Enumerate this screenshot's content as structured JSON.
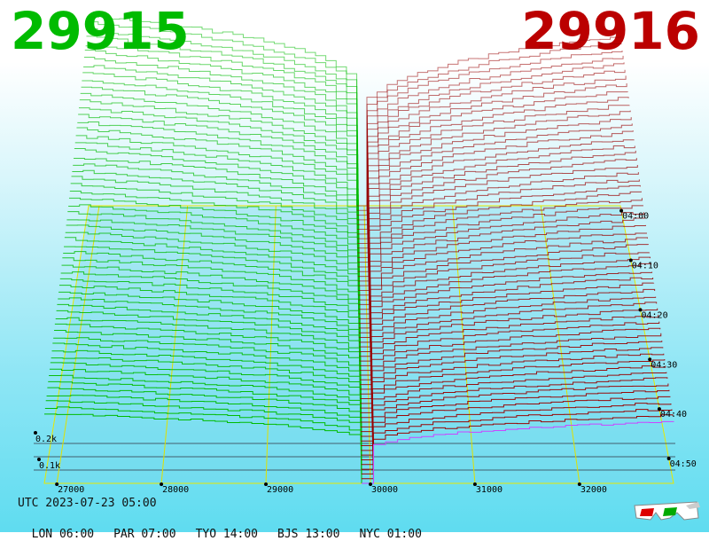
{
  "header": {
    "bid_price": "29915",
    "ask_price": "29916",
    "bid_color": "#00bb00",
    "ask_color": "#bb0000"
  },
  "footer": {
    "utc": "UTC 2023-07-23 05:00",
    "cities": [
      "LON 06:00",
      "PAR 07:00",
      "TYO 14:00",
      "BJS 13:00",
      "NYC 01:00"
    ]
  },
  "chart_data": {
    "type": "area",
    "x_axis": {
      "label": "",
      "ticks": [
        27000,
        28000,
        29000,
        30000,
        31000,
        32000
      ],
      "range": [
        26880,
        32900
      ]
    },
    "time_axis": {
      "ticks": [
        "04:00",
        "04:10",
        "04:20",
        "04:30",
        "04:40",
        "04:50"
      ]
    },
    "depth_axis": {
      "ticks": [
        "0.1k",
        "0.2k"
      ]
    },
    "mid_price": 29915.5,
    "series": [
      {
        "side": "bid",
        "color": "#00bb00",
        "max_depth": 0.56
      },
      {
        "side": "ask",
        "color": "#990000",
        "max_depth": 0.5
      }
    ],
    "snapshots": 60
  },
  "icons": {
    "glasses": "3d-glasses-icon"
  }
}
